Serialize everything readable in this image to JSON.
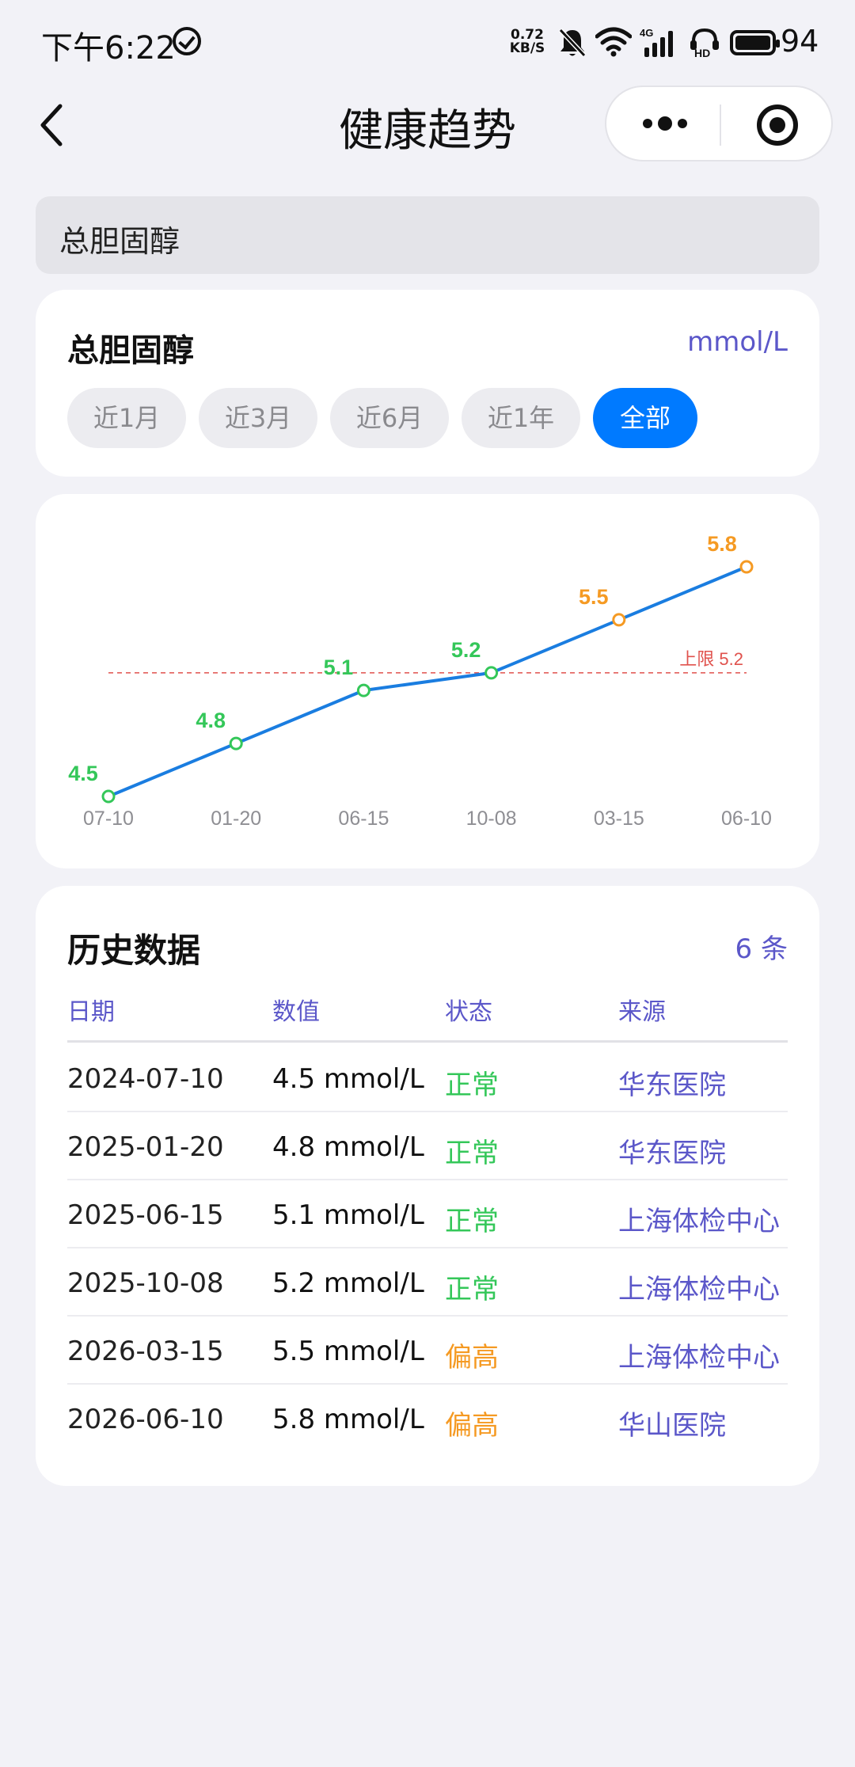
{
  "status_bar": {
    "time": "下午6:22",
    "net_speed_value": "0.72",
    "net_speed_unit": "KB/S",
    "network_type": "4G",
    "hd_label": "HD",
    "battery": "94"
  },
  "nav": {
    "title": "健康趋势"
  },
  "search": {
    "value": "总胆固醇"
  },
  "metric": {
    "name": "总胆固醇",
    "unit": "mmol/L",
    "ranges": [
      "近1月",
      "近3月",
      "近6月",
      "近1年",
      "全部"
    ],
    "selected_range": "全部"
  },
  "chart_data": {
    "type": "line",
    "categories": [
      "07-10",
      "01-20",
      "06-15",
      "10-08",
      "03-15",
      "06-10"
    ],
    "values": [
      4.5,
      4.8,
      5.1,
      5.2,
      5.5,
      5.8
    ],
    "point_status": [
      "normal",
      "normal",
      "normal",
      "normal",
      "high",
      "high"
    ],
    "upper_limit": 5.2,
    "upper_limit_label": "上限 5.2",
    "ylim": [
      4.5,
      5.8
    ],
    "colors": {
      "line": "#1a7de0",
      "normal": "#34c759",
      "high": "#f59a23",
      "limit": "#e0524d"
    }
  },
  "history": {
    "title": "历史数据",
    "count": "6 条",
    "columns": [
      "日期",
      "数值",
      "状态",
      "来源"
    ],
    "rows": [
      {
        "date": "2024-07-10",
        "value": "4.5 mmol/L",
        "status": "正常",
        "status_type": "normal",
        "source": "华东医院"
      },
      {
        "date": "2025-01-20",
        "value": "4.8 mmol/L",
        "status": "正常",
        "status_type": "normal",
        "source": "华东医院"
      },
      {
        "date": "2025-06-15",
        "value": "5.1 mmol/L",
        "status": "正常",
        "status_type": "normal",
        "source": "上海体检中心"
      },
      {
        "date": "2025-10-08",
        "value": "5.2 mmol/L",
        "status": "正常",
        "status_type": "normal",
        "source": "上海体检中心"
      },
      {
        "date": "2026-03-15",
        "value": "5.5 mmol/L",
        "status": "偏高",
        "status_type": "high",
        "source": "上海体检中心"
      },
      {
        "date": "2026-06-10",
        "value": "5.8 mmol/L",
        "status": "偏高",
        "status_type": "high",
        "source": "华山医院"
      }
    ]
  }
}
